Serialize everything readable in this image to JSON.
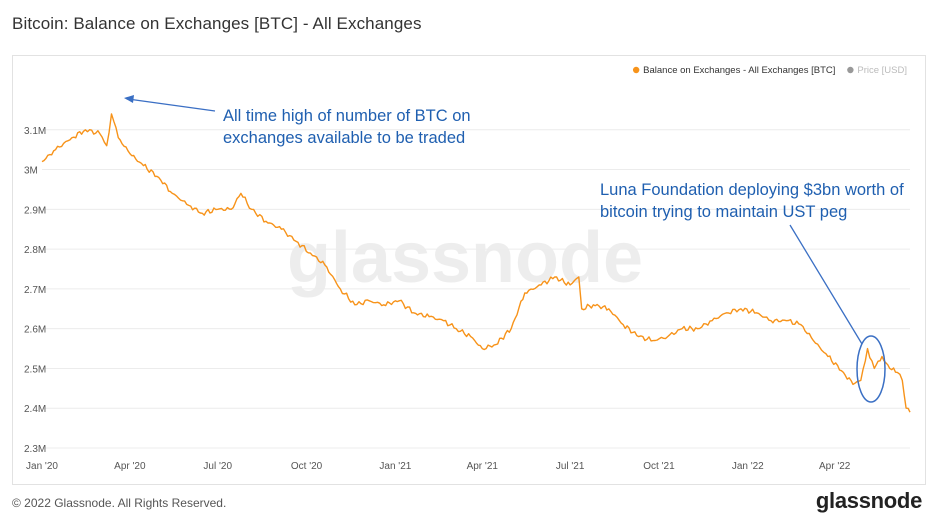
{
  "header": {
    "title": "Bitcoin: Balance on Exchanges [BTC] - All Exchanges"
  },
  "footer": {
    "copyright": "© 2022 Glassnode. All Rights Reserved.",
    "logo": "glassnode"
  },
  "watermark": "glassnode",
  "colors": {
    "series": "#f7931a",
    "price_legend": "#999999",
    "annotation": "#1f5fb0"
  },
  "chart_data": {
    "type": "line",
    "title": "Bitcoin: Balance on Exchanges [BTC] - All Exchanges",
    "xlabel": "",
    "ylabel": "",
    "x_range": [
      "2020-01-01",
      "2022-06-18"
    ],
    "ylim": [
      2300000,
      3200000
    ],
    "y_ticks": [
      {
        "value": 2300000,
        "label": "2.3M"
      },
      {
        "value": 2400000,
        "label": "2.4M"
      },
      {
        "value": 2500000,
        "label": "2.5M"
      },
      {
        "value": 2600000,
        "label": "2.6M"
      },
      {
        "value": 2700000,
        "label": "2.7M"
      },
      {
        "value": 2800000,
        "label": "2.8M"
      },
      {
        "value": 2900000,
        "label": "2.9M"
      },
      {
        "value": 3000000,
        "label": "3M"
      },
      {
        "value": 3100000,
        "label": "3.1M"
      }
    ],
    "x_ticks": [
      {
        "date": "2020-01-01",
        "label": "Jan '20"
      },
      {
        "date": "2020-04-01",
        "label": "Apr '20"
      },
      {
        "date": "2020-07-01",
        "label": "Jul '20"
      },
      {
        "date": "2020-10-01",
        "label": "Oct '20"
      },
      {
        "date": "2021-01-01",
        "label": "Jan '21"
      },
      {
        "date": "2021-04-01",
        "label": "Apr '21"
      },
      {
        "date": "2021-07-01",
        "label": "Jul '21"
      },
      {
        "date": "2021-10-01",
        "label": "Oct '21"
      },
      {
        "date": "2022-01-01",
        "label": "Jan '22"
      },
      {
        "date": "2022-04-01",
        "label": "Apr '22"
      }
    ],
    "legend": {
      "placement": "top-right",
      "items": [
        {
          "name": "Balance on Exchanges - All Exchanges [BTC]",
          "color": "#f7931a",
          "active": true
        },
        {
          "name": "Price [USD]",
          "color": "#999999",
          "active": false
        }
      ]
    },
    "grid": {
      "y": true,
      "x": false
    },
    "series": [
      {
        "name": "Balance on Exchanges - All Exchanges [BTC]",
        "color": "#f7931a",
        "points": [
          {
            "x": "2020-01-01",
            "y": 3020000
          },
          {
            "x": "2020-01-15",
            "y": 3050000
          },
          {
            "x": "2020-02-01",
            "y": 3080000
          },
          {
            "x": "2020-02-15",
            "y": 3100000
          },
          {
            "x": "2020-03-01",
            "y": 3090000
          },
          {
            "x": "2020-03-08",
            "y": 3060000
          },
          {
            "x": "2020-03-13",
            "y": 3140000
          },
          {
            "x": "2020-03-20",
            "y": 3080000
          },
          {
            "x": "2020-04-01",
            "y": 3040000
          },
          {
            "x": "2020-04-15",
            "y": 3010000
          },
          {
            "x": "2020-05-01",
            "y": 2980000
          },
          {
            "x": "2020-05-15",
            "y": 2940000
          },
          {
            "x": "2020-06-01",
            "y": 2910000
          },
          {
            "x": "2020-06-15",
            "y": 2890000
          },
          {
            "x": "2020-07-01",
            "y": 2900000
          },
          {
            "x": "2020-07-15",
            "y": 2900000
          },
          {
            "x": "2020-07-25",
            "y": 2940000
          },
          {
            "x": "2020-08-05",
            "y": 2900000
          },
          {
            "x": "2020-08-20",
            "y": 2870000
          },
          {
            "x": "2020-09-05",
            "y": 2850000
          },
          {
            "x": "2020-09-20",
            "y": 2820000
          },
          {
            "x": "2020-10-05",
            "y": 2790000
          },
          {
            "x": "2020-10-20",
            "y": 2760000
          },
          {
            "x": "2020-11-05",
            "y": 2700000
          },
          {
            "x": "2020-11-20",
            "y": 2660000
          },
          {
            "x": "2020-12-05",
            "y": 2670000
          },
          {
            "x": "2020-12-20",
            "y": 2660000
          },
          {
            "x": "2021-01-05",
            "y": 2670000
          },
          {
            "x": "2021-01-20",
            "y": 2640000
          },
          {
            "x": "2021-02-05",
            "y": 2630000
          },
          {
            "x": "2021-02-20",
            "y": 2620000
          },
          {
            "x": "2021-03-05",
            "y": 2600000
          },
          {
            "x": "2021-03-20",
            "y": 2580000
          },
          {
            "x": "2021-04-01",
            "y": 2550000
          },
          {
            "x": "2021-04-15",
            "y": 2560000
          },
          {
            "x": "2021-05-01",
            "y": 2600000
          },
          {
            "x": "2021-05-15",
            "y": 2690000
          },
          {
            "x": "2021-06-01",
            "y": 2710000
          },
          {
            "x": "2021-06-15",
            "y": 2730000
          },
          {
            "x": "2021-07-01",
            "y": 2710000
          },
          {
            "x": "2021-07-10",
            "y": 2730000
          },
          {
            "x": "2021-07-13",
            "y": 2650000
          },
          {
            "x": "2021-07-25",
            "y": 2660000
          },
          {
            "x": "2021-08-10",
            "y": 2650000
          },
          {
            "x": "2021-08-25",
            "y": 2610000
          },
          {
            "x": "2021-09-10",
            "y": 2580000
          },
          {
            "x": "2021-09-25",
            "y": 2570000
          },
          {
            "x": "2021-10-10",
            "y": 2580000
          },
          {
            "x": "2021-10-25",
            "y": 2600000
          },
          {
            "x": "2021-11-10",
            "y": 2600000
          },
          {
            "x": "2021-11-25",
            "y": 2620000
          },
          {
            "x": "2021-12-10",
            "y": 2640000
          },
          {
            "x": "2021-12-25",
            "y": 2650000
          },
          {
            "x": "2022-01-10",
            "y": 2640000
          },
          {
            "x": "2022-01-25",
            "y": 2620000
          },
          {
            "x": "2022-02-10",
            "y": 2620000
          },
          {
            "x": "2022-02-25",
            "y": 2610000
          },
          {
            "x": "2022-03-10",
            "y": 2570000
          },
          {
            "x": "2022-03-25",
            "y": 2530000
          },
          {
            "x": "2022-04-10",
            "y": 2490000
          },
          {
            "x": "2022-04-20",
            "y": 2460000
          },
          {
            "x": "2022-04-28",
            "y": 2470000
          },
          {
            "x": "2022-05-05",
            "y": 2550000
          },
          {
            "x": "2022-05-12",
            "y": 2500000
          },
          {
            "x": "2022-05-20",
            "y": 2530000
          },
          {
            "x": "2022-05-28",
            "y": 2500000
          },
          {
            "x": "2022-06-05",
            "y": 2490000
          },
          {
            "x": "2022-06-10",
            "y": 2470000
          },
          {
            "x": "2022-06-14",
            "y": 2400000
          },
          {
            "x": "2022-06-18",
            "y": 2390000
          }
        ]
      }
    ],
    "annotations": [
      {
        "text_lines": [
          "All time high of number of BTC on",
          "exchanges available to be traded"
        ]
      },
      {
        "text_lines": [
          "Luna Foundation deploying $3bn worth of",
          "bitcoin trying to maintain UST peg"
        ]
      }
    ]
  }
}
